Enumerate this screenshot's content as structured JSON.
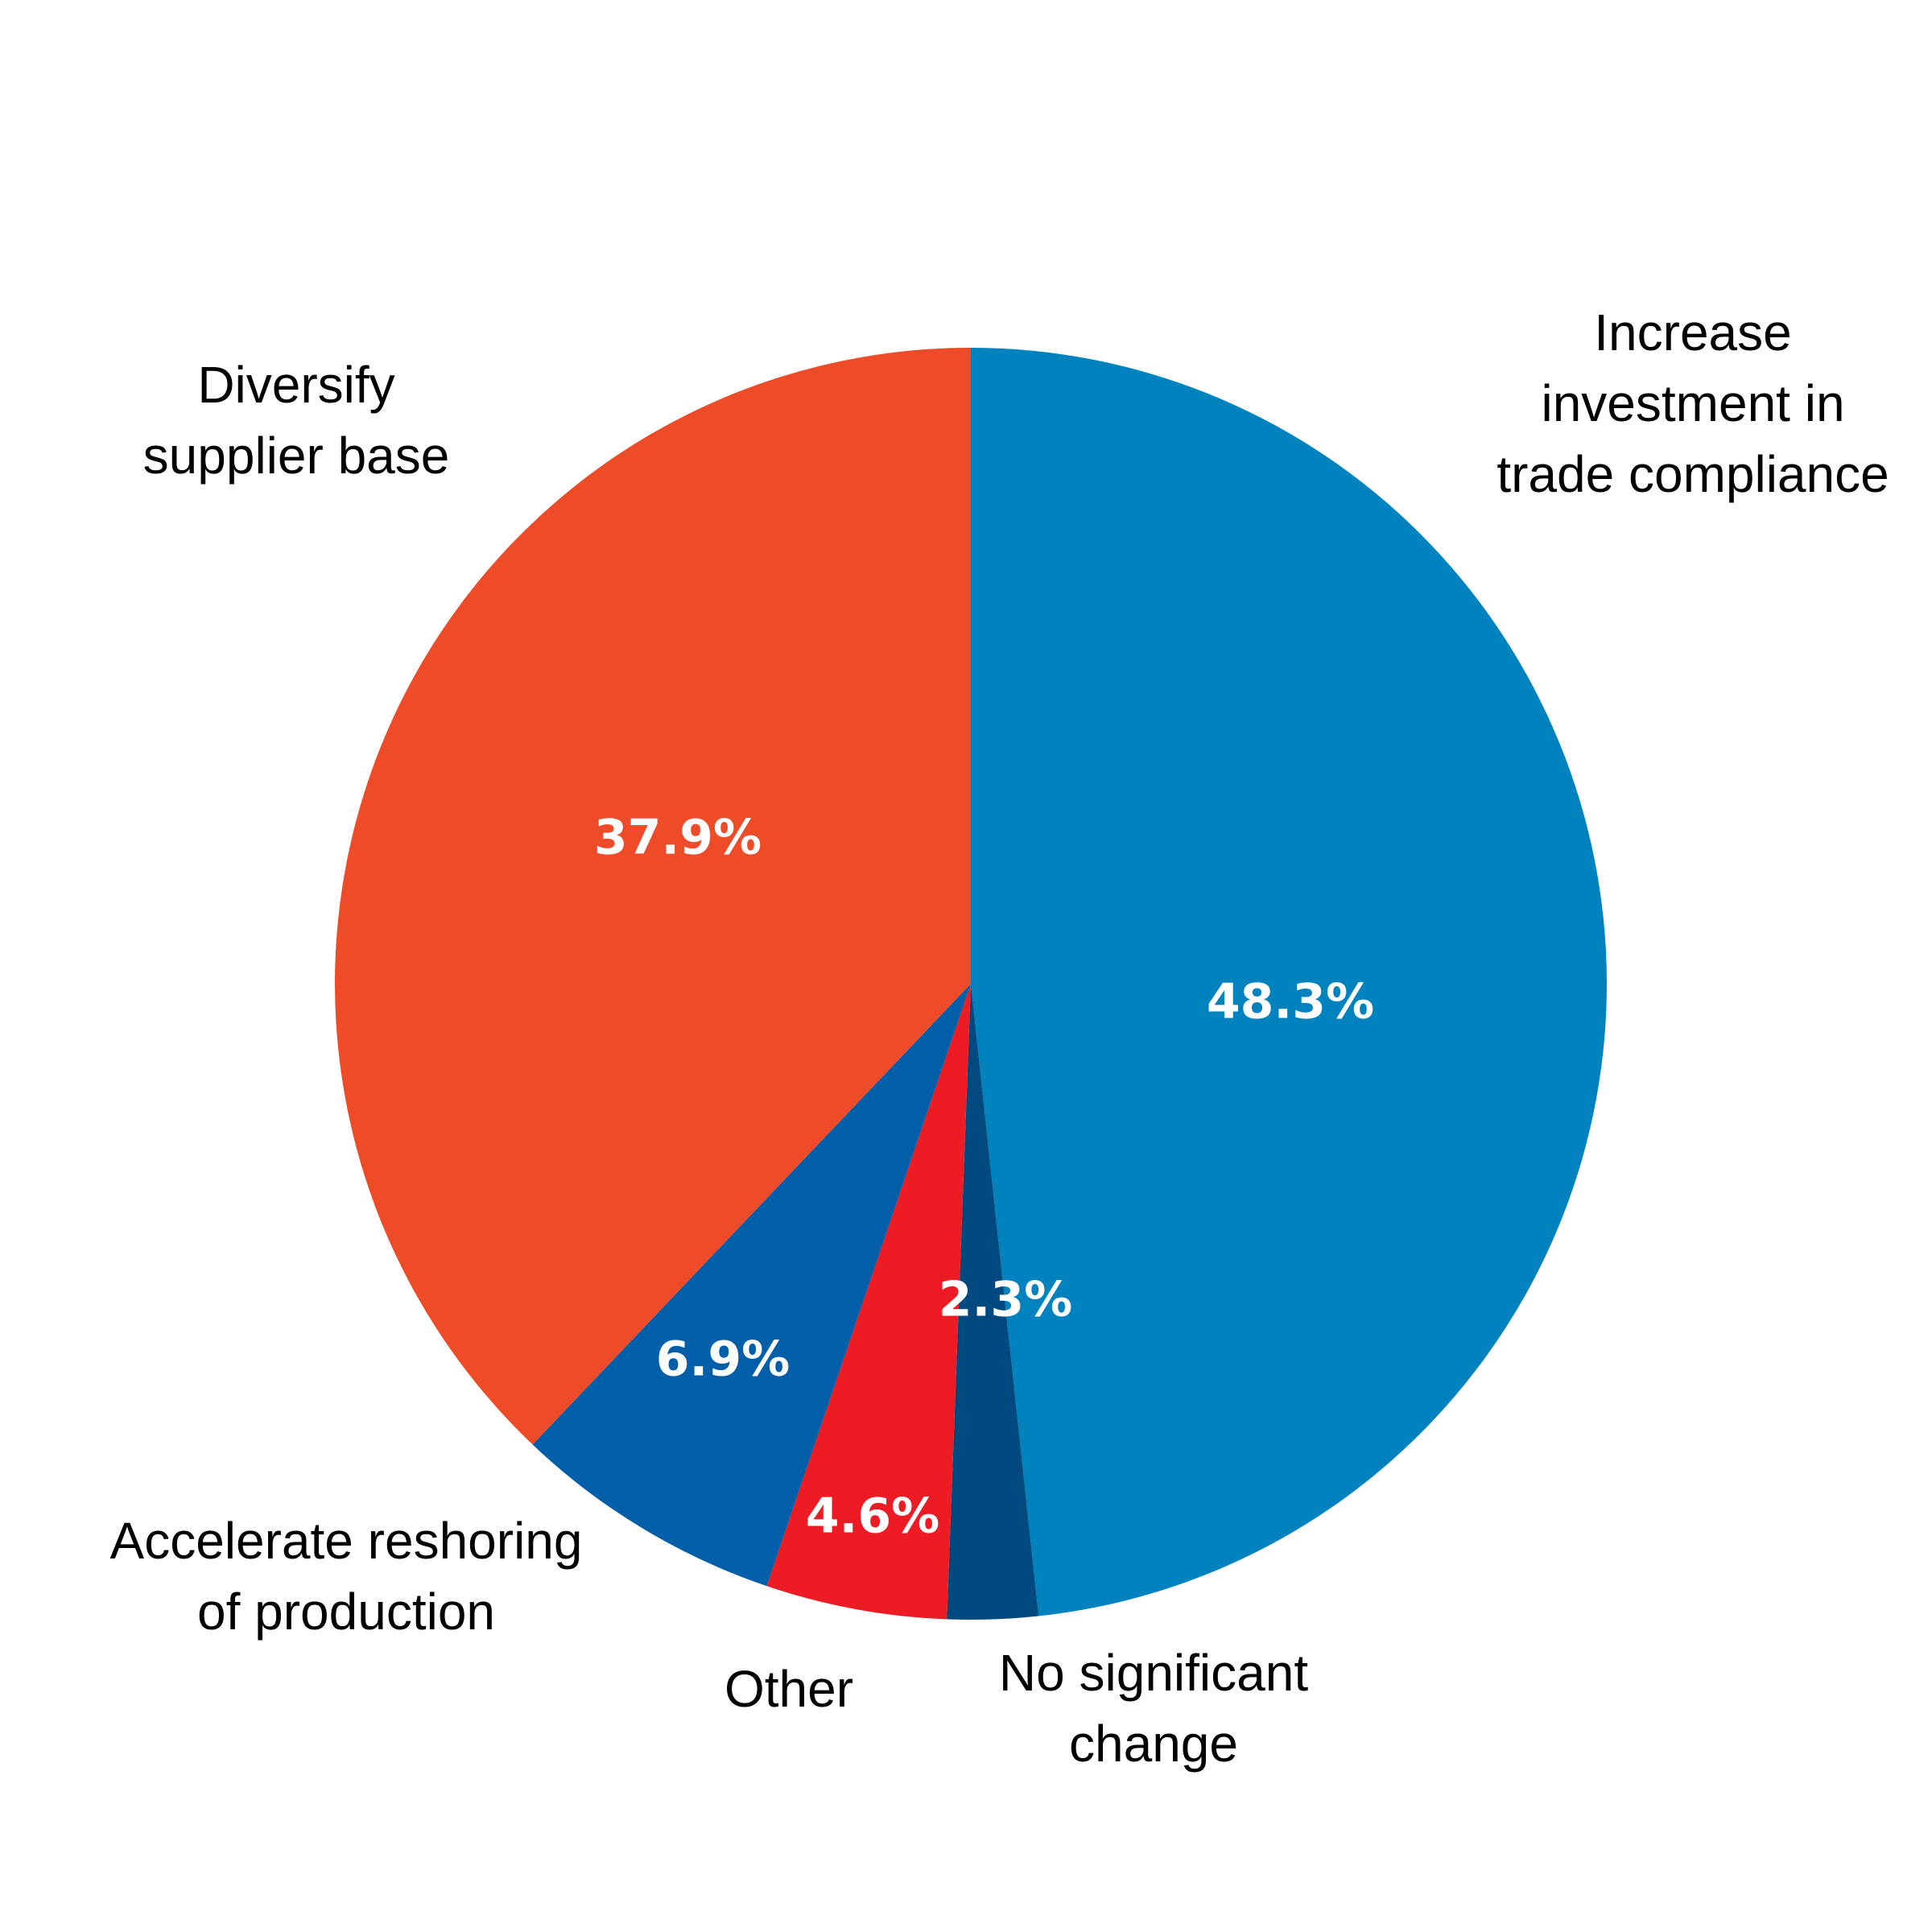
{
  "chart_data": {
    "type": "pie",
    "start": "12 o'clock",
    "direction": "clockwise",
    "slices": [
      {
        "label": "Increase investment in trade compliance",
        "label_lines": [
          "Increase",
          "investment in",
          "trade compliance"
        ],
        "value": 48.3,
        "value_label": "48.3%",
        "color": "#0082BF"
      },
      {
        "label": "No significant change",
        "label_lines": [
          "No significant",
          "change"
        ],
        "value": 2.3,
        "value_label": "2.3%",
        "color": "#004A80"
      },
      {
        "label": "Other",
        "label_lines": [
          "Other"
        ],
        "value": 4.6,
        "value_label": "4.6%",
        "color": "#ED1C24"
      },
      {
        "label": "Accelerate reshoring of production",
        "label_lines": [
          "Accelerate reshoring",
          "of production"
        ],
        "value": 6.9,
        "value_label": "6.9%",
        "color": "#005FA8"
      },
      {
        "label": "Diversify supplier base",
        "label_lines": [
          "Diversify",
          "supplier base"
        ],
        "value": 37.9,
        "value_label": "37.9%",
        "color": "#EE4B28"
      }
    ]
  }
}
